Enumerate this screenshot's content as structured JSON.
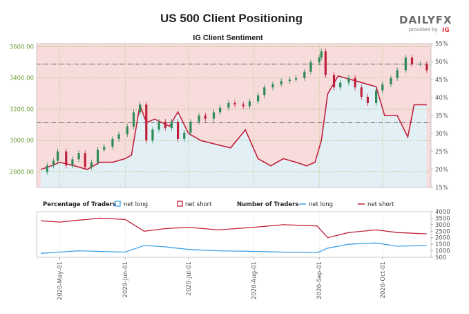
{
  "title": "US 500 Client Positioning",
  "brand": {
    "name": "DAILYFX",
    "provided_by": "provided by",
    "ig": "IG"
  },
  "chart_data": [
    {
      "type": "candlestick",
      "title": "IG Client Sentiment",
      "y_left_ticks": [
        "2800.00",
        "3000.00",
        "3200.00",
        "3400.00",
        "3600.00"
      ],
      "y_left_range": [
        2700,
        3620
      ],
      "y_right_ticks": [
        "15%",
        "20%",
        "25%",
        "30%",
        "35%",
        "40%",
        "45%",
        "50%",
        "55%"
      ],
      "y_right_range": [
        15,
        55
      ],
      "x_dates": [
        "2020-05-01",
        "2020-06-01",
        "2020-07-01",
        "2020-08-01",
        "2020-09-01",
        "2020-10-01"
      ],
      "price_series": [
        {
          "d": "2020-04-22",
          "v": 2800
        },
        {
          "d": "2020-04-25",
          "v": 2840
        },
        {
          "d": "2020-04-28",
          "v": 2870
        },
        {
          "d": "2020-04-30",
          "v": 2930
        },
        {
          "d": "2020-05-04",
          "v": 2840
        },
        {
          "d": "2020-05-07",
          "v": 2880
        },
        {
          "d": "2020-05-10",
          "v": 2920
        },
        {
          "d": "2020-05-13",
          "v": 2830
        },
        {
          "d": "2020-05-16",
          "v": 2860
        },
        {
          "d": "2020-05-19",
          "v": 2940
        },
        {
          "d": "2020-05-22",
          "v": 2960
        },
        {
          "d": "2020-05-26",
          "v": 3010
        },
        {
          "d": "2020-05-29",
          "v": 3040
        },
        {
          "d": "2020-06-02",
          "v": 3090
        },
        {
          "d": "2020-06-05",
          "v": 3180
        },
        {
          "d": "2020-06-08",
          "v": 3230
        },
        {
          "d": "2020-06-11",
          "v": 3000
        },
        {
          "d": "2020-06-14",
          "v": 3070
        },
        {
          "d": "2020-06-17",
          "v": 3120
        },
        {
          "d": "2020-06-20",
          "v": 3080
        },
        {
          "d": "2020-06-23",
          "v": 3120
        },
        {
          "d": "2020-06-26",
          "v": 3010
        },
        {
          "d": "2020-06-29",
          "v": 3050
        },
        {
          "d": "2020-07-02",
          "v": 3120
        },
        {
          "d": "2020-07-06",
          "v": 3160
        },
        {
          "d": "2020-07-09",
          "v": 3140
        },
        {
          "d": "2020-07-13",
          "v": 3180
        },
        {
          "d": "2020-07-16",
          "v": 3210
        },
        {
          "d": "2020-07-20",
          "v": 3240
        },
        {
          "d": "2020-07-23",
          "v": 3230
        },
        {
          "d": "2020-07-27",
          "v": 3220
        },
        {
          "d": "2020-07-30",
          "v": 3250
        },
        {
          "d": "2020-08-03",
          "v": 3290
        },
        {
          "d": "2020-08-06",
          "v": 3340
        },
        {
          "d": "2020-08-10",
          "v": 3360
        },
        {
          "d": "2020-08-14",
          "v": 3380
        },
        {
          "d": "2020-08-18",
          "v": 3390
        },
        {
          "d": "2020-08-21",
          "v": 3400
        },
        {
          "d": "2020-08-25",
          "v": 3440
        },
        {
          "d": "2020-08-28",
          "v": 3500
        },
        {
          "d": "2020-09-01",
          "v": 3530
        },
        {
          "d": "2020-09-02",
          "v": 3570
        },
        {
          "d": "2020-09-04",
          "v": 3420
        },
        {
          "d": "2020-09-08",
          "v": 3340
        },
        {
          "d": "2020-09-11",
          "v": 3370
        },
        {
          "d": "2020-09-15",
          "v": 3400
        },
        {
          "d": "2020-09-18",
          "v": 3340
        },
        {
          "d": "2020-09-21",
          "v": 3280
        },
        {
          "d": "2020-09-24",
          "v": 3240
        },
        {
          "d": "2020-09-28",
          "v": 3320
        },
        {
          "d": "2020-10-01",
          "v": 3360
        },
        {
          "d": "2020-10-05",
          "v": 3400
        },
        {
          "d": "2020-10-08",
          "v": 3450
        },
        {
          "d": "2020-10-12",
          "v": 3530
        },
        {
          "d": "2020-10-15",
          "v": 3490
        },
        {
          "d": "2020-10-19",
          "v": 3490
        },
        {
          "d": "2020-10-22",
          "v": 3450
        }
      ],
      "sentiment_pct_long": [
        {
          "d": "2020-04-22",
          "v": 20
        },
        {
          "d": "2020-04-27",
          "v": 21
        },
        {
          "d": "2020-05-01",
          "v": 22
        },
        {
          "d": "2020-05-08",
          "v": 21
        },
        {
          "d": "2020-05-14",
          "v": 20
        },
        {
          "d": "2020-05-20",
          "v": 22
        },
        {
          "d": "2020-05-26",
          "v": 22
        },
        {
          "d": "2020-06-01",
          "v": 23
        },
        {
          "d": "2020-06-04",
          "v": 24
        },
        {
          "d": "2020-06-08",
          "v": 38
        },
        {
          "d": "2020-06-11",
          "v": 33
        },
        {
          "d": "2020-06-15",
          "v": 34
        },
        {
          "d": "2020-06-22",
          "v": 32
        },
        {
          "d": "2020-06-26",
          "v": 36
        },
        {
          "d": "2020-07-01",
          "v": 30
        },
        {
          "d": "2020-07-07",
          "v": 28
        },
        {
          "d": "2020-07-14",
          "v": 27
        },
        {
          "d": "2020-07-21",
          "v": 26
        },
        {
          "d": "2020-07-28",
          "v": 31
        },
        {
          "d": "2020-08-03",
          "v": 23
        },
        {
          "d": "2020-08-09",
          "v": 21
        },
        {
          "d": "2020-08-15",
          "v": 23
        },
        {
          "d": "2020-08-21",
          "v": 22
        },
        {
          "d": "2020-08-26",
          "v": 21
        },
        {
          "d": "2020-08-30",
          "v": 22
        },
        {
          "d": "2020-09-02",
          "v": 28
        },
        {
          "d": "2020-09-05",
          "v": 41
        },
        {
          "d": "2020-09-10",
          "v": 46
        },
        {
          "d": "2020-09-16",
          "v": 45
        },
        {
          "d": "2020-09-22",
          "v": 44
        },
        {
          "d": "2020-09-28",
          "v": 43
        },
        {
          "d": "2020-10-02",
          "v": 35
        },
        {
          "d": "2020-10-08",
          "v": 35
        },
        {
          "d": "2020-10-13",
          "v": 29
        },
        {
          "d": "2020-10-16",
          "v": 38
        },
        {
          "d": "2020-10-22",
          "v": 38
        }
      ],
      "h_lines": {
        "price_ref": 3488,
        "pct_ref": 33
      }
    },
    {
      "type": "line",
      "title_left": "Percentage of Traders",
      "title_right": "Number of Traders",
      "legend": [
        {
          "name": "net long",
          "color": "#3aa0e8",
          "style": "box"
        },
        {
          "name": "net short",
          "color": "#c0203a",
          "style": "box"
        },
        {
          "name": "net long",
          "color": "#3aa0e8",
          "style": "line"
        },
        {
          "name": "net short",
          "color": "#c0203a",
          "style": "line"
        }
      ],
      "y_ticks": [
        "500",
        "1000",
        "1500",
        "2000",
        "2500",
        "3000",
        "3500",
        "4000"
      ],
      "y_range": [
        500,
        4000
      ],
      "x_labels": [
        "2020-May-01",
        "2020-Jun-01",
        "2020-Jul-01",
        "2020-Aug-01",
        "2020-Sep-01",
        "2020-Oct-01"
      ],
      "x_dates": [
        "2020-05-01",
        "2020-06-01",
        "2020-07-01",
        "2020-08-01",
        "2020-09-01",
        "2020-10-01"
      ],
      "series": [
        {
          "name": "net short",
          "color": "#c0203a",
          "values": [
            {
              "d": "2020-04-22",
              "v": 3300
            },
            {
              "d": "2020-05-01",
              "v": 3200
            },
            {
              "d": "2020-05-10",
              "v": 3350
            },
            {
              "d": "2020-05-20",
              "v": 3500
            },
            {
              "d": "2020-06-01",
              "v": 3400
            },
            {
              "d": "2020-06-10",
              "v": 2500
            },
            {
              "d": "2020-06-20",
              "v": 2700
            },
            {
              "d": "2020-07-01",
              "v": 2800
            },
            {
              "d": "2020-07-15",
              "v": 2600
            },
            {
              "d": "2020-08-01",
              "v": 2800
            },
            {
              "d": "2020-08-15",
              "v": 3000
            },
            {
              "d": "2020-08-31",
              "v": 2900
            },
            {
              "d": "2020-09-05",
              "v": 2000
            },
            {
              "d": "2020-09-15",
              "v": 2400
            },
            {
              "d": "2020-09-28",
              "v": 2600
            },
            {
              "d": "2020-10-08",
              "v": 2400
            },
            {
              "d": "2020-10-22",
              "v": 2300
            }
          ]
        },
        {
          "name": "net long",
          "color": "#3aa0e8",
          "values": [
            {
              "d": "2020-04-22",
              "v": 800
            },
            {
              "d": "2020-05-01",
              "v": 900
            },
            {
              "d": "2020-05-10",
              "v": 1000
            },
            {
              "d": "2020-05-20",
              "v": 950
            },
            {
              "d": "2020-06-01",
              "v": 900
            },
            {
              "d": "2020-06-10",
              "v": 1400
            },
            {
              "d": "2020-06-20",
              "v": 1300
            },
            {
              "d": "2020-07-01",
              "v": 1100
            },
            {
              "d": "2020-07-15",
              "v": 1000
            },
            {
              "d": "2020-08-01",
              "v": 950
            },
            {
              "d": "2020-08-15",
              "v": 900
            },
            {
              "d": "2020-08-31",
              "v": 850
            },
            {
              "d": "2020-09-05",
              "v": 1200
            },
            {
              "d": "2020-09-15",
              "v": 1500
            },
            {
              "d": "2020-09-28",
              "v": 1600
            },
            {
              "d": "2020-10-08",
              "v": 1350
            },
            {
              "d": "2020-10-22",
              "v": 1400
            }
          ]
        }
      ]
    }
  ],
  "colors": {
    "bull_candle": "#2e8b57",
    "bear_candle": "#c0203a",
    "sentiment_line": "#c0203a",
    "short_fill": "#f8dcdc",
    "long_fill": "#e2f0f5",
    "grid_price": "#7da833",
    "grid_date": "#9cc35a",
    "ref_line": "#555555",
    "left_axis_text": "#6a9a32"
  }
}
